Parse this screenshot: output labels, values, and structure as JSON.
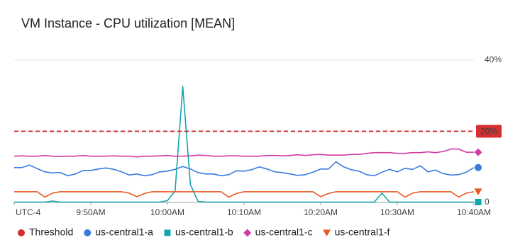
{
  "chart_data": {
    "type": "line",
    "title": "VM Instance - CPU utilization [MEAN]",
    "categories": [
      "UTC-4",
      null,
      null,
      null,
      null,
      null,
      null,
      null,
      null,
      null,
      "9:50AM",
      null,
      null,
      null,
      null,
      null,
      null,
      null,
      null,
      null,
      "10:00AM",
      null,
      null,
      null,
      null,
      null,
      null,
      null,
      null,
      null,
      "10:10AM",
      null,
      null,
      null,
      null,
      null,
      null,
      null,
      null,
      null,
      "10:20AM",
      null,
      null,
      null,
      null,
      null,
      null,
      null,
      null,
      null,
      "10:30AM",
      null,
      null,
      null,
      null,
      null,
      null,
      null,
      null,
      null,
      "10:40AM"
    ],
    "series": [
      {
        "name": "us-central1-a",
        "color": "#3a7be0",
        "marker": "circle",
        "values": [
          9.8,
          9.8,
          10.5,
          9.5,
          8.6,
          8.3,
          8.4,
          7.5,
          8,
          9,
          9,
          9.4,
          9.7,
          9.3,
          8.6,
          7.7,
          8,
          7.5,
          7.8,
          8.6,
          8.8,
          9.3,
          10.1,
          9.4,
          8.4,
          8,
          8,
          7.5,
          7.8,
          8.9,
          8.8,
          9.2,
          10,
          9.4,
          8.6,
          8.4,
          8,
          7.6,
          7.8,
          8.5,
          9.4,
          9.4,
          11.4,
          10,
          9.2,
          8.8,
          7.8,
          7.5,
          8.5,
          9.3,
          8.6,
          9.6,
          9.3,
          10.3,
          8.6,
          9.1,
          8.1,
          7.7,
          7.8,
          8.5,
          9.8
        ]
      },
      {
        "name": "us-central1-b",
        "color": "#12a4af",
        "marker": "square",
        "values": [
          0.1,
          0.1,
          0.1,
          0.1,
          0.1,
          0.4,
          0.1,
          0.1,
          0.1,
          0.1,
          0.1,
          0.1,
          0.1,
          0.1,
          0.1,
          0.1,
          0.1,
          0.1,
          0.1,
          0.1,
          0.5,
          3.2,
          32.6,
          5,
          0.3,
          0.1,
          0.1,
          0.1,
          0.1,
          0.1,
          0.1,
          0.1,
          0.1,
          0.1,
          0.1,
          0.1,
          0.1,
          0.1,
          0.1,
          0.1,
          0.1,
          0.1,
          0.1,
          0.1,
          0.1,
          0.1,
          0.1,
          0.1,
          2.6,
          0.1,
          0.1,
          0.1,
          0.1,
          0.1,
          0.1,
          0.1,
          0.1,
          0.1,
          0.1,
          0.1,
          0.1
        ]
      },
      {
        "name": "us-central1-c",
        "color": "#d23ba2",
        "marker": "diamond",
        "values": [
          13,
          13.1,
          13,
          13,
          13.2,
          13,
          12.9,
          13,
          13,
          13.2,
          13,
          13,
          13,
          13.1,
          13,
          13,
          12.8,
          13,
          13,
          13.1,
          13.2,
          13,
          13,
          13.1,
          13.3,
          13.2,
          13,
          13,
          13.1,
          13.1,
          13,
          13,
          13,
          13.2,
          13.2,
          13.1,
          13.2,
          13.4,
          13.2,
          13.4,
          13.5,
          13.3,
          13.3,
          13.3,
          13.5,
          13.5,
          13.8,
          14,
          14,
          14,
          13.8,
          13.8,
          14,
          14,
          14.2,
          14,
          14.3,
          15,
          15,
          14.1,
          14.1
        ]
      },
      {
        "name": "us-central1-f",
        "color": "#e8571e",
        "marker": "triangle",
        "values": [
          3,
          3,
          3,
          3,
          1.5,
          2.6,
          3,
          3,
          3,
          3,
          3,
          3,
          3,
          3,
          3,
          2.6,
          1.6,
          2.5,
          3,
          3,
          3,
          3,
          3,
          3,
          3,
          3,
          3,
          3,
          1.5,
          2.5,
          3,
          3,
          3,
          3,
          3,
          3,
          3,
          3,
          3,
          3,
          1.6,
          2.5,
          3,
          3,
          3,
          3,
          3,
          3,
          3,
          3,
          3,
          1.5,
          2.6,
          3,
          3,
          3,
          3,
          3,
          1.5,
          2.6,
          3
        ]
      }
    ],
    "threshold": {
      "name": "Threshold",
      "value": 20,
      "label": "20%",
      "color": "#d32f2f"
    },
    "ylim": [
      0,
      40
    ],
    "yticks": [
      0,
      {
        "value": 20,
        "label": "20%"
      },
      {
        "value": 40,
        "label": "40%"
      }
    ],
    "grid": true
  }
}
